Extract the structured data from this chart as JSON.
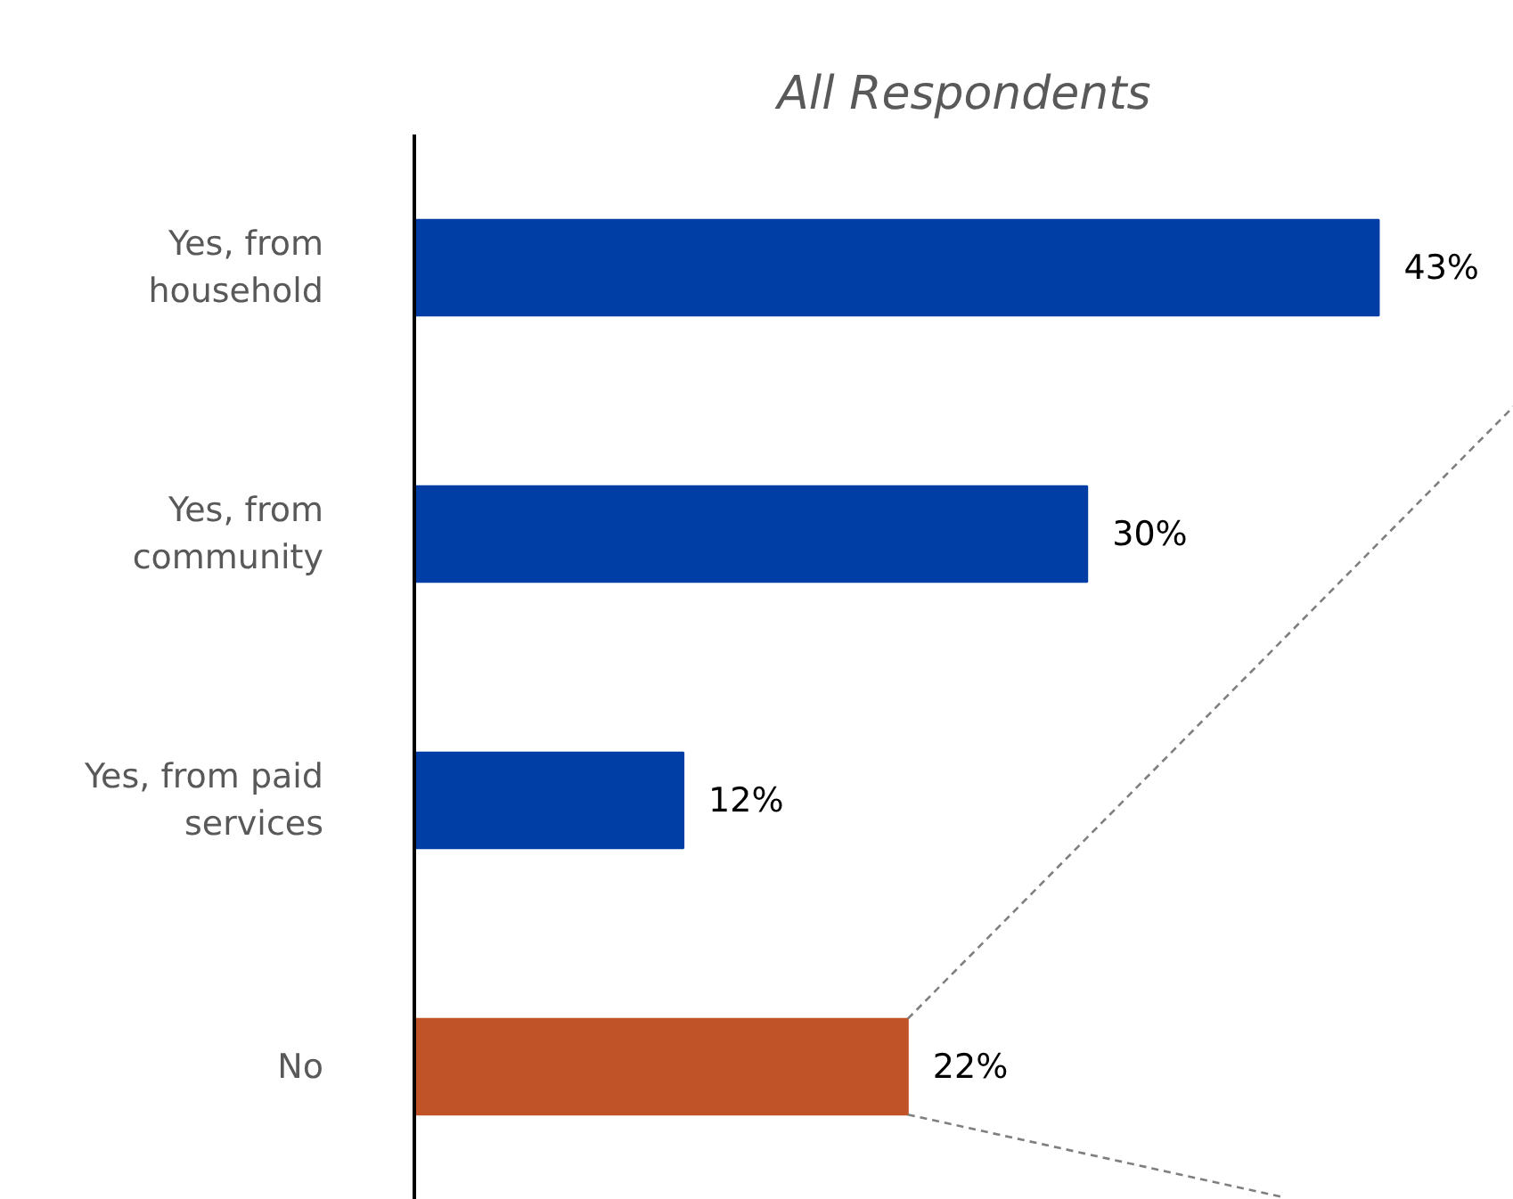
{
  "chart_data": {
    "type": "bar",
    "orientation": "horizontal",
    "title": "All Respondents",
    "categories": [
      "Yes, from household",
      "Yes, from community",
      "Yes, from paid services",
      "No"
    ],
    "values": [
      43,
      30,
      12,
      22
    ],
    "colors": [
      "#003da5",
      "#003da5",
      "#003da5",
      "#c05327"
    ],
    "data_labels": true,
    "value_labels": [
      "43%",
      "30%",
      "12%",
      "22%"
    ],
    "tick_labels": "y"
  }
}
